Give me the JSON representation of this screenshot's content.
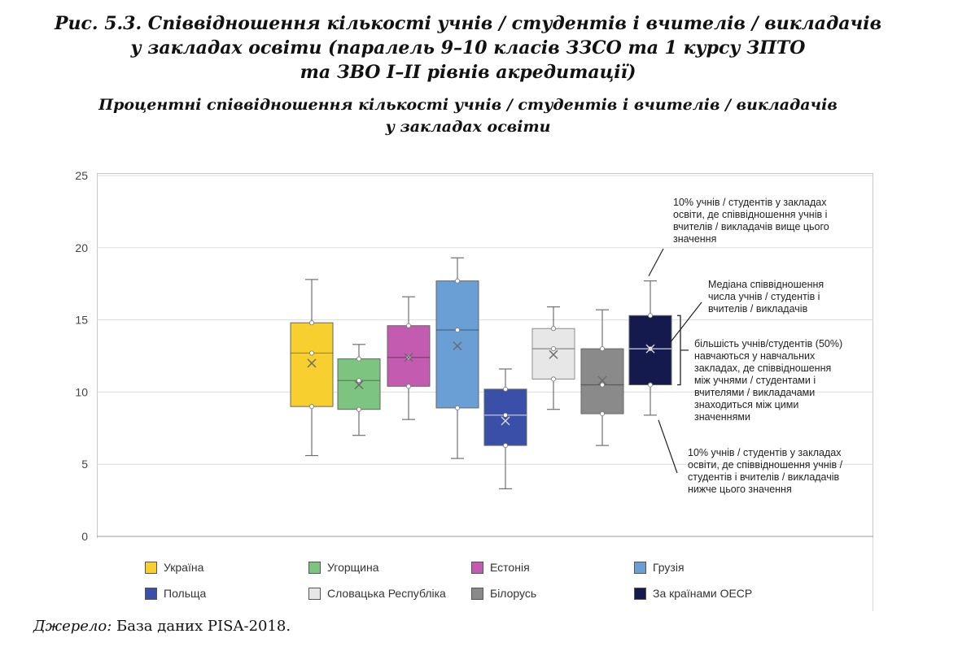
{
  "figure": {
    "title_lines": [
      "Рис. 5.3. Співвідношення кількості учнів / студентів і вчителів / викладачів",
      "у закладах освіти (паралель 9–10 класів ЗЗСО та 1 курсу ЗПТО",
      "та ЗВО І–ІІ рівнів акредитації)"
    ],
    "subtitle_lines": [
      "Процентні співвідношення кількості учнів / студентів і вчителів / викладачів",
      "у закладах освіти"
    ],
    "source_label": "Джерело:",
    "source_text": " База даних PISA-2018."
  },
  "annotations": {
    "top": [
      "10% учнів / студентів у закладах",
      "освіти, де співвідношення учнів і",
      "вчителів / викладачів вище цього",
      "значення"
    ],
    "median": [
      "Медіана співвідношення",
      "числа учнів / студентів і",
      "вчителів / викладачів"
    ],
    "middle": [
      "більшість учнів/студентів (50%)",
      "навчаються у навчальних",
      "закладах, де співвідношення",
      "між учнями / студентами і",
      "вчителями / викладачами",
      "знаходиться між цими",
      "значеннями"
    ],
    "bottom": [
      "10% учнів / студентів у закладах",
      "освіти, де співвідношення учнів /",
      "студентів і вчителів / викладачів",
      "нижче цього значення"
    ]
  },
  "chart_data": {
    "type": "boxplot",
    "ylim": [
      0,
      25
    ],
    "yticks": [
      0,
      5,
      10,
      15,
      20,
      25
    ],
    "grid": true,
    "legend_position": "bottom",
    "series": [
      {
        "name": "Україна",
        "color": "#f7cf2e",
        "p10": 5.6,
        "q1": 9.0,
        "median": 12.7,
        "q3": 14.8,
        "p90": 17.8,
        "mean": 12.0
      },
      {
        "name": "Угорщина",
        "color": "#7cc47f",
        "p10": 7.0,
        "q1": 8.8,
        "median": 10.8,
        "q3": 12.3,
        "p90": 13.3,
        "mean": 10.5
      },
      {
        "name": "Естонія",
        "color": "#c35bb0",
        "p10": 8.1,
        "q1": 10.4,
        "median": 12.4,
        "q3": 14.6,
        "p90": 16.6,
        "mean": 12.4
      },
      {
        "name": "Грузія",
        "color": "#6a9fd6",
        "p10": 5.4,
        "q1": 8.9,
        "median": 14.3,
        "q3": 17.7,
        "p90": 19.3,
        "mean": 13.2
      },
      {
        "name": "Польща",
        "color": "#3a4fa8",
        "p10": 3.3,
        "q1": 6.3,
        "median": 8.4,
        "q3": 10.2,
        "p90": 11.6,
        "mean": 8.0
      },
      {
        "name": "Словацька Республіка",
        "color": "#e7e7e7",
        "p10": 8.8,
        "q1": 10.9,
        "median": 13.0,
        "q3": 14.4,
        "p90": 15.9,
        "mean": 12.6
      },
      {
        "name": "Білорусь",
        "color": "#8a8a8a",
        "p10": 6.3,
        "q1": 8.5,
        "median": 10.5,
        "q3": 13.0,
        "p90": 15.7,
        "mean": 10.8
      },
      {
        "name": "За країнами ОЕСР",
        "color": "#141a4e",
        "p10": 8.4,
        "q1": 10.5,
        "median": 13.0,
        "q3": 15.3,
        "p90": 17.7,
        "mean": 13.0
      }
    ]
  }
}
